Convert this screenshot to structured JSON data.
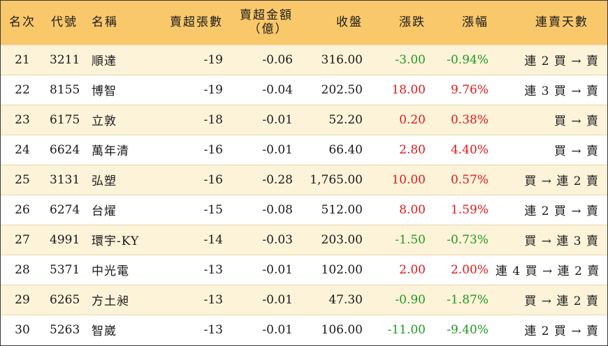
{
  "headers": {
    "rank": "名次",
    "code": "代號",
    "name": "名稱",
    "sell_lots": "賣超張數",
    "sell_amount_line1": "賣超金額",
    "sell_amount_line2": "（億）",
    "close": "收盤",
    "change": "漲跌",
    "change_pct": "漲幅",
    "streak": "連賣天數"
  },
  "rows": [
    {
      "rank": "21",
      "code": "3211",
      "name": "順達",
      "sell_lots": "-19",
      "sell_amount": "-0.06",
      "close": "316.00",
      "change": "-3.00",
      "change_pct": "-0.94%",
      "streak": "連 2 買 → 賣",
      "trend": "down"
    },
    {
      "rank": "22",
      "code": "8155",
      "name": "博智",
      "sell_lots": "-19",
      "sell_amount": "-0.04",
      "close": "202.50",
      "change": "18.00",
      "change_pct": "9.76%",
      "streak": "連 3 買 → 賣",
      "trend": "up"
    },
    {
      "rank": "23",
      "code": "6175",
      "name": "立敦",
      "sell_lots": "-18",
      "sell_amount": "-0.01",
      "close": "52.20",
      "change": "0.20",
      "change_pct": "0.38%",
      "streak": "買 → 賣",
      "trend": "up"
    },
    {
      "rank": "24",
      "code": "6624",
      "name": "萬年清",
      "sell_lots": "-16",
      "sell_amount": "-0.01",
      "close": "66.40",
      "change": "2.80",
      "change_pct": "4.40%",
      "streak": "買 → 賣",
      "trend": "up"
    },
    {
      "rank": "25",
      "code": "3131",
      "name": "弘塑",
      "sell_lots": "-16",
      "sell_amount": "-0.28",
      "close": "1,765.00",
      "change": "10.00",
      "change_pct": "0.57%",
      "streak": "買 → 連 2 賣",
      "trend": "up"
    },
    {
      "rank": "26",
      "code": "6274",
      "name": "台燿",
      "sell_lots": "-15",
      "sell_amount": "-0.08",
      "close": "512.00",
      "change": "8.00",
      "change_pct": "1.59%",
      "streak": "連 2 買 → 賣",
      "trend": "up"
    },
    {
      "rank": "27",
      "code": "4991",
      "name": "環宇-KY",
      "sell_lots": "-14",
      "sell_amount": "-0.03",
      "close": "203.00",
      "change": "-1.50",
      "change_pct": "-0.73%",
      "streak": "買 → 連 3 賣",
      "trend": "down"
    },
    {
      "rank": "28",
      "code": "5371",
      "name": "中光電",
      "sell_lots": "-13",
      "sell_amount": "-0.01",
      "close": "102.00",
      "change": "2.00",
      "change_pct": "2.00%",
      "streak": "連 4 買 → 連 2 賣",
      "trend": "up"
    },
    {
      "rank": "29",
      "code": "6265",
      "name": "方土昶",
      "sell_lots": "-13",
      "sell_amount": "-0.01",
      "close": "47.30",
      "change": "-0.90",
      "change_pct": "-1.87%",
      "streak": "買 → 連 2 賣",
      "trend": "down"
    },
    {
      "rank": "30",
      "code": "5263",
      "name": "智崴",
      "sell_lots": "-13",
      "sell_amount": "-0.01",
      "close": "106.00",
      "change": "-11.00",
      "change_pct": "-9.40%",
      "streak": "連 2 買 → 賣",
      "trend": "down"
    }
  ],
  "colors": {
    "header_bg": "#f9c86b",
    "row_stripe": "#fdf3d9",
    "up": "#e0191b",
    "down": "#1f9a1f"
  }
}
